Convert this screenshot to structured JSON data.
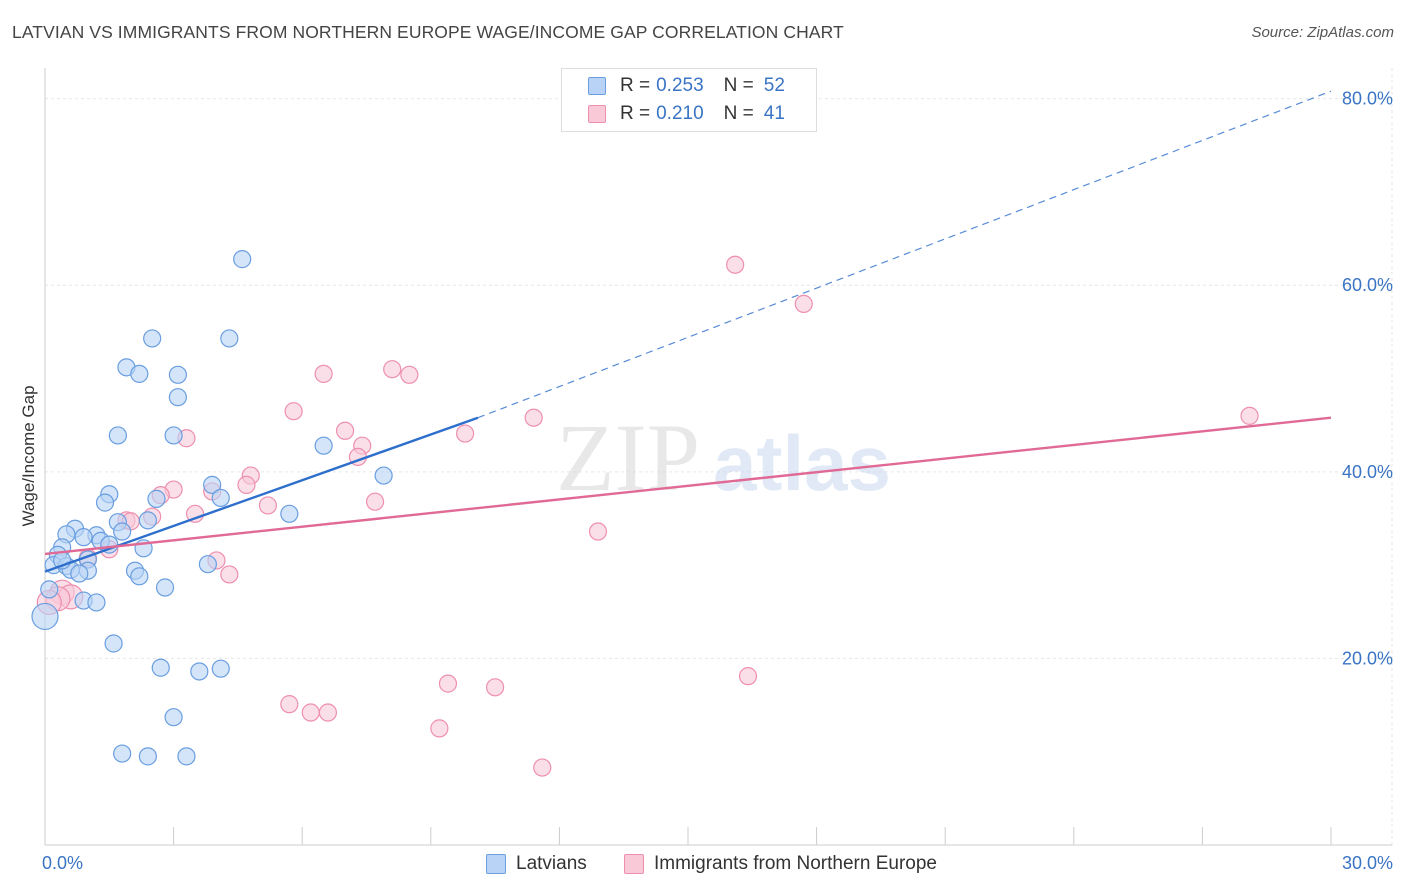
{
  "title": "LATVIAN VS IMMIGRANTS FROM NORTHERN EUROPE WAGE/INCOME GAP CORRELATION CHART",
  "source": "Source: ZipAtlas.com",
  "watermark": {
    "zip": "ZIP",
    "atlas": "atlas"
  },
  "colors": {
    "latvians_fill": "#b8d3f5",
    "latvians_stroke": "#6a9ee0",
    "latvians_line": "#2e6fcc",
    "immigrants_fill": "#f9c9d8",
    "immigrants_stroke": "#ee8fae",
    "immigrants_line": "#e06a95",
    "axis_text": "#3a74c4",
    "grid": "#e6e6e6"
  },
  "legend": {
    "rows": [
      {
        "r_label": "R =",
        "r_value": "0.253",
        "n_label": "N =",
        "n_value": "52"
      },
      {
        "r_label": "R =",
        "r_value": "0.210",
        "n_label": "N =",
        "n_value": "41"
      }
    ]
  },
  "chart_data": {
    "type": "scatter",
    "title": "LATVIAN VS IMMIGRANTS FROM NORTHERN EUROPE WAGE/INCOME GAP CORRELATION CHART",
    "xlabel": "",
    "ylabel": "Wage/Income Gap",
    "xlim": [
      0,
      30
    ],
    "ylim": [
      0,
      82
    ],
    "x_tick_labels": [
      "0.0%",
      "30.0%"
    ],
    "y_ticks": [
      20,
      40,
      60,
      80
    ],
    "y_tick_labels": [
      "20.0%",
      "40.0%",
      "60.0%",
      "80.0%"
    ],
    "grid": true,
    "legend_position": "top-center",
    "series": [
      {
        "name": "Latvians",
        "r": 0.253,
        "n": 52,
        "trend": {
          "x0": 0.0,
          "y0": 29.3,
          "x1": 10.1,
          "y1": 45.8,
          "dashed_to_x": 30.0,
          "dashed_to_y": 80.8
        },
        "points": [
          [
            4.6,
            62.8
          ],
          [
            2.5,
            54.3
          ],
          [
            4.3,
            54.3
          ],
          [
            1.9,
            51.2
          ],
          [
            2.2,
            50.5
          ],
          [
            3.1,
            50.4
          ],
          [
            3.1,
            48.0
          ],
          [
            1.7,
            43.9
          ],
          [
            3.0,
            43.9
          ],
          [
            6.5,
            42.8
          ],
          [
            7.9,
            39.6
          ],
          [
            3.9,
            38.6
          ],
          [
            1.5,
            37.6
          ],
          [
            4.1,
            37.2
          ],
          [
            1.4,
            36.7
          ],
          [
            2.6,
            37.1
          ],
          [
            5.7,
            35.5
          ],
          [
            2.4,
            34.8
          ],
          [
            1.7,
            34.6
          ],
          [
            0.7,
            33.9
          ],
          [
            0.5,
            33.3
          ],
          [
            1.2,
            33.2
          ],
          [
            1.8,
            33.6
          ],
          [
            0.9,
            33.0
          ],
          [
            1.3,
            32.6
          ],
          [
            0.4,
            31.9
          ],
          [
            1.5,
            32.2
          ],
          [
            2.3,
            31.8
          ],
          [
            0.3,
            31.1
          ],
          [
            1.0,
            30.6
          ],
          [
            0.2,
            30.0
          ],
          [
            0.5,
            29.9
          ],
          [
            0.6,
            29.5
          ],
          [
            1.0,
            29.4
          ],
          [
            0.8,
            29.1
          ],
          [
            2.1,
            29.4
          ],
          [
            3.8,
            30.1
          ],
          [
            2.2,
            28.8
          ],
          [
            2.8,
            27.6
          ],
          [
            0.1,
            27.4
          ],
          [
            0.9,
            26.2
          ],
          [
            1.2,
            26.0
          ],
          [
            0.0,
            24.5
          ],
          [
            1.6,
            21.6
          ],
          [
            2.7,
            19.0
          ],
          [
            3.6,
            18.6
          ],
          [
            4.1,
            18.9
          ],
          [
            3.0,
            13.7
          ],
          [
            1.8,
            9.8
          ],
          [
            2.4,
            9.5
          ],
          [
            3.3,
            9.5
          ],
          [
            0.4,
            30.5
          ]
        ]
      },
      {
        "name": "Immigrants from Northern Europe",
        "r": 0.21,
        "n": 41,
        "trend": {
          "x0": 0.0,
          "y0": 31.2,
          "x1": 30.0,
          "y1": 45.8
        },
        "points": [
          [
            16.1,
            62.2
          ],
          [
            17.7,
            58.0
          ],
          [
            8.1,
            51.0
          ],
          [
            6.5,
            50.5
          ],
          [
            8.5,
            50.4
          ],
          [
            5.8,
            46.5
          ],
          [
            11.4,
            45.8
          ],
          [
            28.1,
            46.0
          ],
          [
            7.0,
            44.4
          ],
          [
            9.8,
            44.1
          ],
          [
            3.3,
            43.6
          ],
          [
            7.4,
            42.8
          ],
          [
            7.3,
            41.6
          ],
          [
            4.8,
            39.6
          ],
          [
            4.7,
            38.6
          ],
          [
            3.0,
            38.1
          ],
          [
            3.9,
            37.9
          ],
          [
            2.7,
            37.5
          ],
          [
            7.7,
            36.8
          ],
          [
            5.2,
            36.4
          ],
          [
            3.5,
            35.5
          ],
          [
            2.5,
            35.2
          ],
          [
            1.9,
            34.8
          ],
          [
            2.0,
            34.7
          ],
          [
            12.9,
            33.6
          ],
          [
            1.5,
            31.7
          ],
          [
            4.0,
            30.5
          ],
          [
            1.0,
            30.8
          ],
          [
            4.3,
            29.0
          ],
          [
            0.4,
            27.1
          ],
          [
            0.6,
            26.6
          ],
          [
            0.3,
            26.4
          ],
          [
            0.1,
            26.0
          ],
          [
            9.4,
            17.3
          ],
          [
            10.5,
            16.9
          ],
          [
            16.4,
            18.1
          ],
          [
            5.7,
            15.1
          ],
          [
            6.2,
            14.2
          ],
          [
            6.6,
            14.2
          ],
          [
            9.2,
            12.5
          ],
          [
            11.6,
            8.3
          ]
        ]
      }
    ]
  }
}
